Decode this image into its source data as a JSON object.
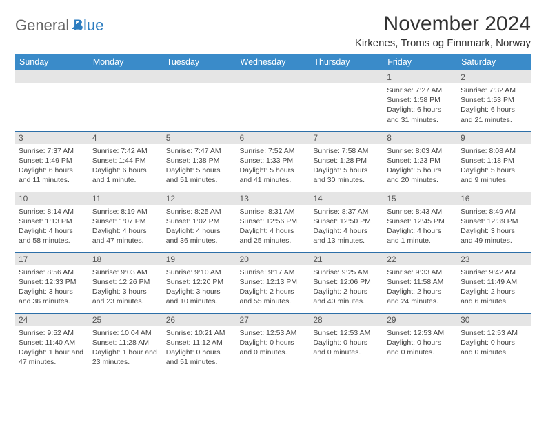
{
  "brand": {
    "part1": "General",
    "part2": "Blue"
  },
  "title": "November 2024",
  "location": "Kirkenes, Troms og Finnmark, Norway",
  "colors": {
    "header_bg": "#3a8bc9",
    "row_divider": "#2d6fa8",
    "daynum_bg": "#e5e5e5",
    "brand_blue": "#2d7dc0",
    "text": "#333333"
  },
  "day_headers": [
    "Sunday",
    "Monday",
    "Tuesday",
    "Wednesday",
    "Thursday",
    "Friday",
    "Saturday"
  ],
  "weeks": [
    [
      {
        "n": "",
        "lines": []
      },
      {
        "n": "",
        "lines": []
      },
      {
        "n": "",
        "lines": []
      },
      {
        "n": "",
        "lines": []
      },
      {
        "n": "",
        "lines": []
      },
      {
        "n": "1",
        "lines": [
          "Sunrise: 7:27 AM",
          "Sunset: 1:58 PM",
          "Daylight: 6 hours and 31 minutes."
        ]
      },
      {
        "n": "2",
        "lines": [
          "Sunrise: 7:32 AM",
          "Sunset: 1:53 PM",
          "Daylight: 6 hours and 21 minutes."
        ]
      }
    ],
    [
      {
        "n": "3",
        "lines": [
          "Sunrise: 7:37 AM",
          "Sunset: 1:49 PM",
          "Daylight: 6 hours and 11 minutes."
        ]
      },
      {
        "n": "4",
        "lines": [
          "Sunrise: 7:42 AM",
          "Sunset: 1:44 PM",
          "Daylight: 6 hours and 1 minute."
        ]
      },
      {
        "n": "5",
        "lines": [
          "Sunrise: 7:47 AM",
          "Sunset: 1:38 PM",
          "Daylight: 5 hours and 51 minutes."
        ]
      },
      {
        "n": "6",
        "lines": [
          "Sunrise: 7:52 AM",
          "Sunset: 1:33 PM",
          "Daylight: 5 hours and 41 minutes."
        ]
      },
      {
        "n": "7",
        "lines": [
          "Sunrise: 7:58 AM",
          "Sunset: 1:28 PM",
          "Daylight: 5 hours and 30 minutes."
        ]
      },
      {
        "n": "8",
        "lines": [
          "Sunrise: 8:03 AM",
          "Sunset: 1:23 PM",
          "Daylight: 5 hours and 20 minutes."
        ]
      },
      {
        "n": "9",
        "lines": [
          "Sunrise: 8:08 AM",
          "Sunset: 1:18 PM",
          "Daylight: 5 hours and 9 minutes."
        ]
      }
    ],
    [
      {
        "n": "10",
        "lines": [
          "Sunrise: 8:14 AM",
          "Sunset: 1:13 PM",
          "Daylight: 4 hours and 58 minutes."
        ]
      },
      {
        "n": "11",
        "lines": [
          "Sunrise: 8:19 AM",
          "Sunset: 1:07 PM",
          "Daylight: 4 hours and 47 minutes."
        ]
      },
      {
        "n": "12",
        "lines": [
          "Sunrise: 8:25 AM",
          "Sunset: 1:02 PM",
          "Daylight: 4 hours and 36 minutes."
        ]
      },
      {
        "n": "13",
        "lines": [
          "Sunrise: 8:31 AM",
          "Sunset: 12:56 PM",
          "Daylight: 4 hours and 25 minutes."
        ]
      },
      {
        "n": "14",
        "lines": [
          "Sunrise: 8:37 AM",
          "Sunset: 12:50 PM",
          "Daylight: 4 hours and 13 minutes."
        ]
      },
      {
        "n": "15",
        "lines": [
          "Sunrise: 8:43 AM",
          "Sunset: 12:45 PM",
          "Daylight: 4 hours and 1 minute."
        ]
      },
      {
        "n": "16",
        "lines": [
          "Sunrise: 8:49 AM",
          "Sunset: 12:39 PM",
          "Daylight: 3 hours and 49 minutes."
        ]
      }
    ],
    [
      {
        "n": "17",
        "lines": [
          "Sunrise: 8:56 AM",
          "Sunset: 12:33 PM",
          "Daylight: 3 hours and 36 minutes."
        ]
      },
      {
        "n": "18",
        "lines": [
          "Sunrise: 9:03 AM",
          "Sunset: 12:26 PM",
          "Daylight: 3 hours and 23 minutes."
        ]
      },
      {
        "n": "19",
        "lines": [
          "Sunrise: 9:10 AM",
          "Sunset: 12:20 PM",
          "Daylight: 3 hours and 10 minutes."
        ]
      },
      {
        "n": "20",
        "lines": [
          "Sunrise: 9:17 AM",
          "Sunset: 12:13 PM",
          "Daylight: 2 hours and 55 minutes."
        ]
      },
      {
        "n": "21",
        "lines": [
          "Sunrise: 9:25 AM",
          "Sunset: 12:06 PM",
          "Daylight: 2 hours and 40 minutes."
        ]
      },
      {
        "n": "22",
        "lines": [
          "Sunrise: 9:33 AM",
          "Sunset: 11:58 AM",
          "Daylight: 2 hours and 24 minutes."
        ]
      },
      {
        "n": "23",
        "lines": [
          "Sunrise: 9:42 AM",
          "Sunset: 11:49 AM",
          "Daylight: 2 hours and 6 minutes."
        ]
      }
    ],
    [
      {
        "n": "24",
        "lines": [
          "Sunrise: 9:52 AM",
          "Sunset: 11:40 AM",
          "Daylight: 1 hour and 47 minutes."
        ]
      },
      {
        "n": "25",
        "lines": [
          "Sunrise: 10:04 AM",
          "Sunset: 11:28 AM",
          "Daylight: 1 hour and 23 minutes."
        ]
      },
      {
        "n": "26",
        "lines": [
          "Sunrise: 10:21 AM",
          "Sunset: 11:12 AM",
          "Daylight: 0 hours and 51 minutes."
        ]
      },
      {
        "n": "27",
        "lines": [
          "",
          "Sunset: 12:53 AM",
          "Daylight: 0 hours and 0 minutes."
        ]
      },
      {
        "n": "28",
        "lines": [
          "",
          "Sunset: 12:53 AM",
          "Daylight: 0 hours and 0 minutes."
        ]
      },
      {
        "n": "29",
        "lines": [
          "",
          "Sunset: 12:53 AM",
          "Daylight: 0 hours and 0 minutes."
        ]
      },
      {
        "n": "30",
        "lines": [
          "",
          "Sunset: 12:53 AM",
          "Daylight: 0 hours and 0 minutes."
        ]
      }
    ]
  ]
}
